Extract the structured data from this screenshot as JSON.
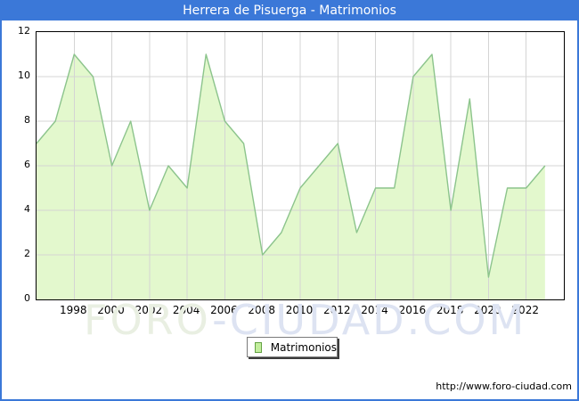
{
  "window": {
    "title": "Herrera de Pisuerga - Matrimonios",
    "accent_color": "#3b78d8"
  },
  "chart_data": {
    "type": "area",
    "title": "Herrera de Pisuerga - Matrimonios",
    "x": [
      1996,
      1997,
      1998,
      1999,
      2000,
      2001,
      2002,
      2003,
      2004,
      2005,
      2006,
      2007,
      2008,
      2009,
      2010,
      2011,
      2012,
      2013,
      2014,
      2015,
      2016,
      2017,
      2018,
      2019,
      2020,
      2021,
      2022,
      2023
    ],
    "series": [
      {
        "name": "Matrimonios",
        "values": [
          7,
          8,
          11,
          10,
          6,
          8,
          4,
          6,
          5,
          11,
          8,
          7,
          2,
          3,
          5,
          6,
          7,
          3,
          5,
          5,
          10,
          11,
          4,
          9,
          1,
          5,
          5,
          6
        ]
      }
    ],
    "ylim": [
      0,
      12
    ],
    "yticks": [
      0,
      2,
      4,
      6,
      8,
      10,
      12
    ],
    "xticks": [
      1998,
      2000,
      2002,
      2004,
      2006,
      2008,
      2010,
      2012,
      2014,
      2016,
      2018,
      2020,
      2022
    ],
    "grid": true,
    "legend_position": "bottom-center",
    "fill_color": "#e3f8cd",
    "line_color": "#8cc48c",
    "grid_color": "#d4d4d4"
  },
  "legend": {
    "label": "Matrimonios",
    "swatch_color": "#c3ee9d",
    "swatch_border": "#64a244"
  },
  "watermark": {
    "part1": "FORO",
    "part2": "-CIUDAD.COM"
  },
  "footer": {
    "url": "http://www.foro-ciudad.com"
  }
}
